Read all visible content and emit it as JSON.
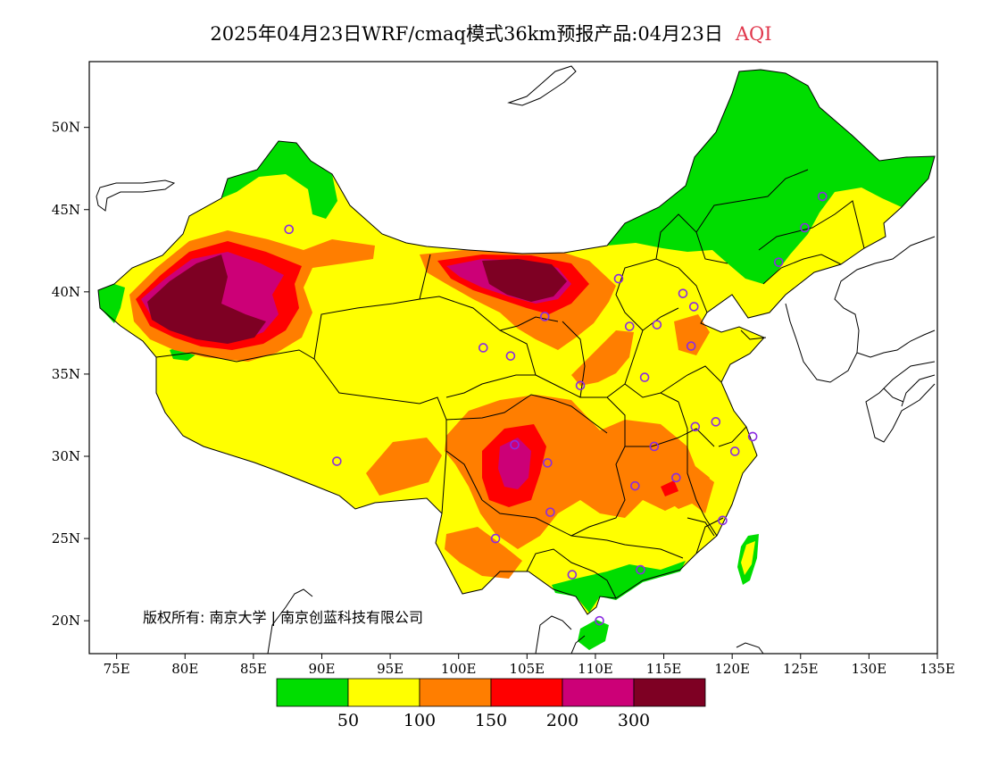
{
  "title": {
    "main": "2025年04月23日WRF/cmaq模式36km预报产品:04月23日",
    "product": "AQI",
    "product_color": "#e0364b"
  },
  "map": {
    "lon_range": [
      73,
      135
    ],
    "lat_range": [
      18,
      54
    ],
    "lon_ticks": [
      "75E",
      "80E",
      "85E",
      "90E",
      "95E",
      "100E",
      "105E",
      "110E",
      "115E",
      "120E",
      "125E",
      "130E",
      "135E"
    ],
    "lat_ticks": [
      "20N",
      "25N",
      "30N",
      "35N",
      "40N",
      "45N",
      "50N"
    ],
    "copyright": "版权所有: 南京大学 | 南京创蓝科技有限公司",
    "station_marker_color": "#8a2be2",
    "stations": [
      [
        87.6,
        43.8
      ],
      [
        91.1,
        29.7
      ],
      [
        101.8,
        36.6
      ],
      [
        103.8,
        36.1
      ],
      [
        106.3,
        38.5
      ],
      [
        104.1,
        30.7
      ],
      [
        106.5,
        29.6
      ],
      [
        106.7,
        26.6
      ],
      [
        102.7,
        25.0
      ],
      [
        108.3,
        22.8
      ],
      [
        110.3,
        20.0
      ],
      [
        113.3,
        23.1
      ],
      [
        112.9,
        28.2
      ],
      [
        114.3,
        30.6
      ],
      [
        115.9,
        28.7
      ],
      [
        117.3,
        31.8
      ],
      [
        118.8,
        32.1
      ],
      [
        120.2,
        30.3
      ],
      [
        121.5,
        31.2
      ],
      [
        119.3,
        26.1
      ],
      [
        113.6,
        34.8
      ],
      [
        108.9,
        34.3
      ],
      [
        112.5,
        37.9
      ],
      [
        114.5,
        38.0
      ],
      [
        116.4,
        39.9
      ],
      [
        117.2,
        39.1
      ],
      [
        117.0,
        36.7
      ],
      [
        111.7,
        40.8
      ],
      [
        123.4,
        41.8
      ],
      [
        125.3,
        43.9
      ],
      [
        126.6,
        45.8
      ]
    ]
  },
  "legend": {
    "colors": [
      "#00dd00",
      "#ffff00",
      "#ff7e00",
      "#ff0000",
      "#cc0077",
      "#7e0023"
    ],
    "labels": [
      "50",
      "100",
      "150",
      "200",
      "300"
    ]
  },
  "colors": {
    "good": "#00dd00",
    "moderate": "#ffff00",
    "sensitive": "#ff7e00",
    "unhealthy": "#ff0000",
    "very_unhealthy": "#cc0077",
    "hazardous": "#7e0023"
  }
}
